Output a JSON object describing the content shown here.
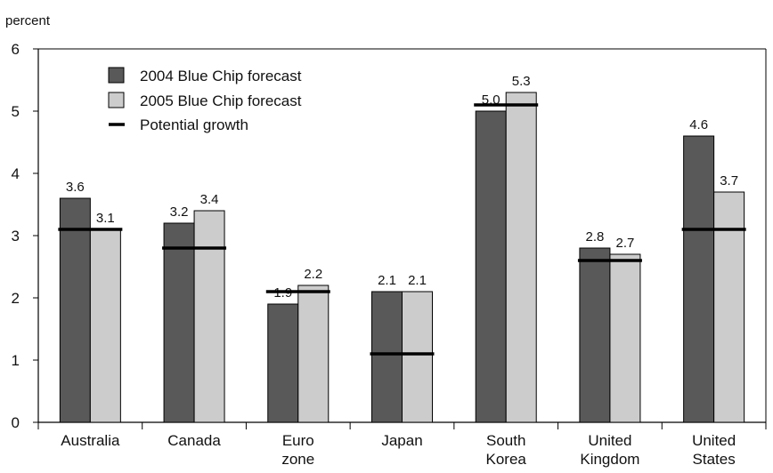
{
  "chart_data": {
    "type": "bar",
    "ylabel": "percent",
    "ylim": [
      0,
      6
    ],
    "yticks": [
      0,
      1,
      2,
      3,
      4,
      5,
      6
    ],
    "categories": [
      [
        "Australia"
      ],
      [
        "Canada"
      ],
      [
        "Euro",
        "zone"
      ],
      [
        "Japan"
      ],
      [
        "South",
        "Korea"
      ],
      [
        "United",
        "Kingdom"
      ],
      [
        "United",
        "States"
      ]
    ],
    "series": [
      {
        "name": "2004 Blue Chip forecast",
        "values": [
          3.6,
          3.2,
          1.9,
          2.1,
          5.0,
          2.8,
          4.6
        ],
        "labels": [
          "3.6",
          "3.2",
          "1.9",
          "2.1",
          "5.0",
          "2.8",
          "4.6"
        ],
        "color": "#595959"
      },
      {
        "name": "2005 Blue Chip forecast",
        "values": [
          3.1,
          3.4,
          2.2,
          2.1,
          5.3,
          2.7,
          3.7
        ],
        "labels": [
          "3.1",
          "3.4",
          "2.2",
          "2.1",
          "5.3",
          "2.7",
          "3.7"
        ],
        "color": "#cccccc"
      }
    ],
    "potential_growth": {
      "name": "Potential growth",
      "values": [
        3.1,
        2.8,
        2.1,
        1.1,
        5.1,
        2.6,
        3.1
      ],
      "color": "#000000"
    },
    "legend_position": "top-left",
    "grid": false
  }
}
